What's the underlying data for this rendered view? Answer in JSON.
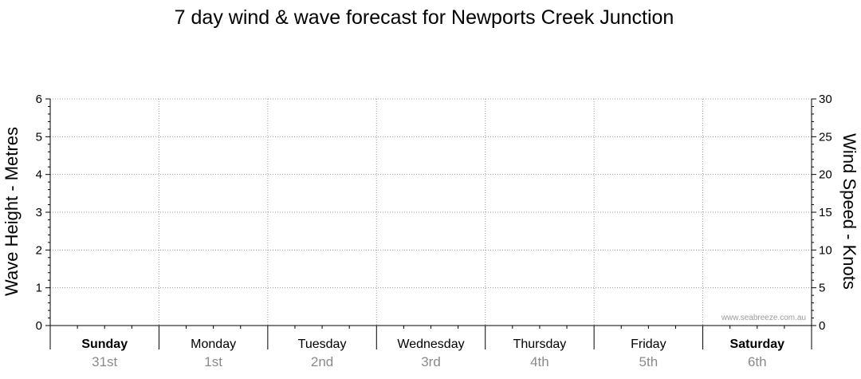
{
  "chart_data": {
    "type": "line",
    "title": "7 day wind & wave forecast for Newports Creek Junction",
    "ylabel_left": "Wave Height - Metres",
    "ylabel_right": "Wind Speed - Knots",
    "ylim_left": [
      0,
      6
    ],
    "ylim_right": [
      0,
      30
    ],
    "yticks_left": [
      "0",
      "1",
      "2",
      "3",
      "4",
      "5",
      "6"
    ],
    "yticks_right": [
      "0",
      "5",
      "10",
      "15",
      "20",
      "25",
      "30"
    ],
    "grid": true,
    "days": [
      {
        "name": "Sunday",
        "date": "31st",
        "bold": true
      },
      {
        "name": "Monday",
        "date": "1st",
        "bold": false
      },
      {
        "name": "Tuesday",
        "date": "2nd",
        "bold": false
      },
      {
        "name": "Wednesday",
        "date": "3rd",
        "bold": false
      },
      {
        "name": "Thursday",
        "date": "4th",
        "bold": false
      },
      {
        "name": "Friday",
        "date": "5th",
        "bold": false
      },
      {
        "name": "Saturday",
        "date": "6th",
        "bold": true
      }
    ],
    "series": [],
    "watermark": "www.seabreeze.com.au"
  }
}
